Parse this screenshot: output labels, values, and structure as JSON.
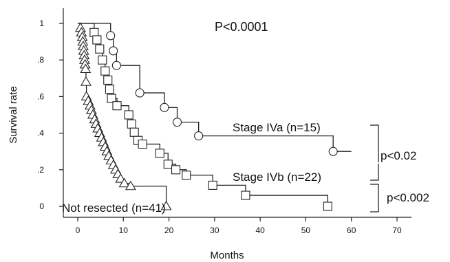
{
  "chart_data": {
    "type": "line",
    "xlabel": "Months",
    "ylabel": "Survival rate",
    "xlim": [
      0,
      70
    ],
    "ylim": [
      0,
      1
    ],
    "x_ticks": [
      0,
      10,
      20,
      30,
      40,
      50,
      60,
      70
    ],
    "y_ticks": [
      0,
      0.2,
      0.4,
      0.6,
      0.8,
      1
    ],
    "y_tick_labels": [
      "0",
      ".2",
      ".4",
      ".6",
      ".8",
      "1"
    ],
    "grid": false,
    "annotations": {
      "overall_p": "P<0.0001",
      "p_iva_ivb": "p<0.02",
      "p_ivb_nr": "p<0.002"
    },
    "series": [
      {
        "name": "Stage IVa (n=15)",
        "marker": "circle",
        "steps": [
          [
            0,
            1.0
          ],
          [
            7.2,
            0.933
          ],
          [
            7.8,
            0.85
          ],
          [
            8.5,
            0.77
          ],
          [
            13.6,
            0.62
          ],
          [
            19.0,
            0.54
          ],
          [
            21.8,
            0.46
          ],
          [
            26.5,
            0.385
          ],
          [
            56.0,
            0.3
          ]
        ],
        "censor_x": [
          7.2,
          7.8,
          8.5,
          13.6,
          19.0,
          21.8,
          26.5,
          56.0
        ],
        "end_x": 60
      },
      {
        "name": "Stage IVb (n=22)",
        "marker": "square",
        "steps": [
          [
            0,
            1.0
          ],
          [
            3.6,
            0.95
          ],
          [
            4.2,
            0.91
          ],
          [
            4.8,
            0.86
          ],
          [
            5.4,
            0.8
          ],
          [
            6.0,
            0.74
          ],
          [
            6.6,
            0.69
          ],
          [
            7.0,
            0.64
          ],
          [
            7.4,
            0.59
          ],
          [
            8.6,
            0.55
          ],
          [
            11.2,
            0.5
          ],
          [
            11.8,
            0.45
          ],
          [
            12.4,
            0.405
          ],
          [
            13.2,
            0.36
          ],
          [
            14.2,
            0.34
          ],
          [
            18.0,
            0.29
          ],
          [
            19.8,
            0.23
          ],
          [
            21.5,
            0.2
          ],
          [
            23.8,
            0.17
          ],
          [
            29.6,
            0.115
          ],
          [
            36.8,
            0.06
          ],
          [
            54.8,
            0.0
          ]
        ],
        "censor_x": [
          3.6,
          4.2,
          4.8,
          5.4,
          6.0,
          6.6,
          7.0,
          7.4,
          8.6,
          11.2,
          11.8,
          12.4,
          13.2,
          14.2,
          18.0,
          19.8,
          21.5,
          23.8,
          29.6,
          36.8,
          54.8
        ],
        "end_x": 54.8
      },
      {
        "name": "Not resected (n=41)",
        "marker": "triangle",
        "steps": [
          [
            0,
            1.0
          ],
          [
            0.6,
            0.975
          ],
          [
            0.8,
            0.95
          ],
          [
            1.0,
            0.925
          ],
          [
            1.1,
            0.9
          ],
          [
            1.2,
            0.875
          ],
          [
            1.3,
            0.85
          ],
          [
            1.4,
            0.825
          ],
          [
            1.5,
            0.8
          ],
          [
            1.6,
            0.775
          ],
          [
            1.7,
            0.75
          ],
          [
            1.8,
            0.68
          ],
          [
            1.9,
            0.6
          ],
          [
            2.3,
            0.575
          ],
          [
            2.7,
            0.55
          ],
          [
            3.0,
            0.525
          ],
          [
            3.3,
            0.5
          ],
          [
            3.7,
            0.475
          ],
          [
            4.0,
            0.45
          ],
          [
            4.4,
            0.425
          ],
          [
            4.8,
            0.4
          ],
          [
            5.2,
            0.375
          ],
          [
            5.6,
            0.35
          ],
          [
            6.0,
            0.325
          ],
          [
            6.4,
            0.3
          ],
          [
            6.8,
            0.275
          ],
          [
            7.3,
            0.25
          ],
          [
            7.8,
            0.225
          ],
          [
            8.3,
            0.2
          ],
          [
            8.8,
            0.175
          ],
          [
            9.4,
            0.15
          ],
          [
            10.2,
            0.125
          ],
          [
            11.6,
            0.11
          ],
          [
            19.4,
            0.0
          ]
        ],
        "censor_x": [
          0.6,
          0.8,
          1.0,
          1.1,
          1.2,
          1.3,
          1.4,
          1.5,
          1.6,
          1.7,
          1.8,
          1.9,
          2.3,
          2.7,
          3.0,
          3.3,
          3.7,
          4.0,
          4.4,
          4.8,
          5.2,
          5.6,
          6.0,
          6.4,
          6.8,
          7.3,
          7.8,
          8.3,
          8.8,
          9.4,
          10.2,
          11.6,
          19.4
        ],
        "end_x": 19.4
      }
    ]
  }
}
